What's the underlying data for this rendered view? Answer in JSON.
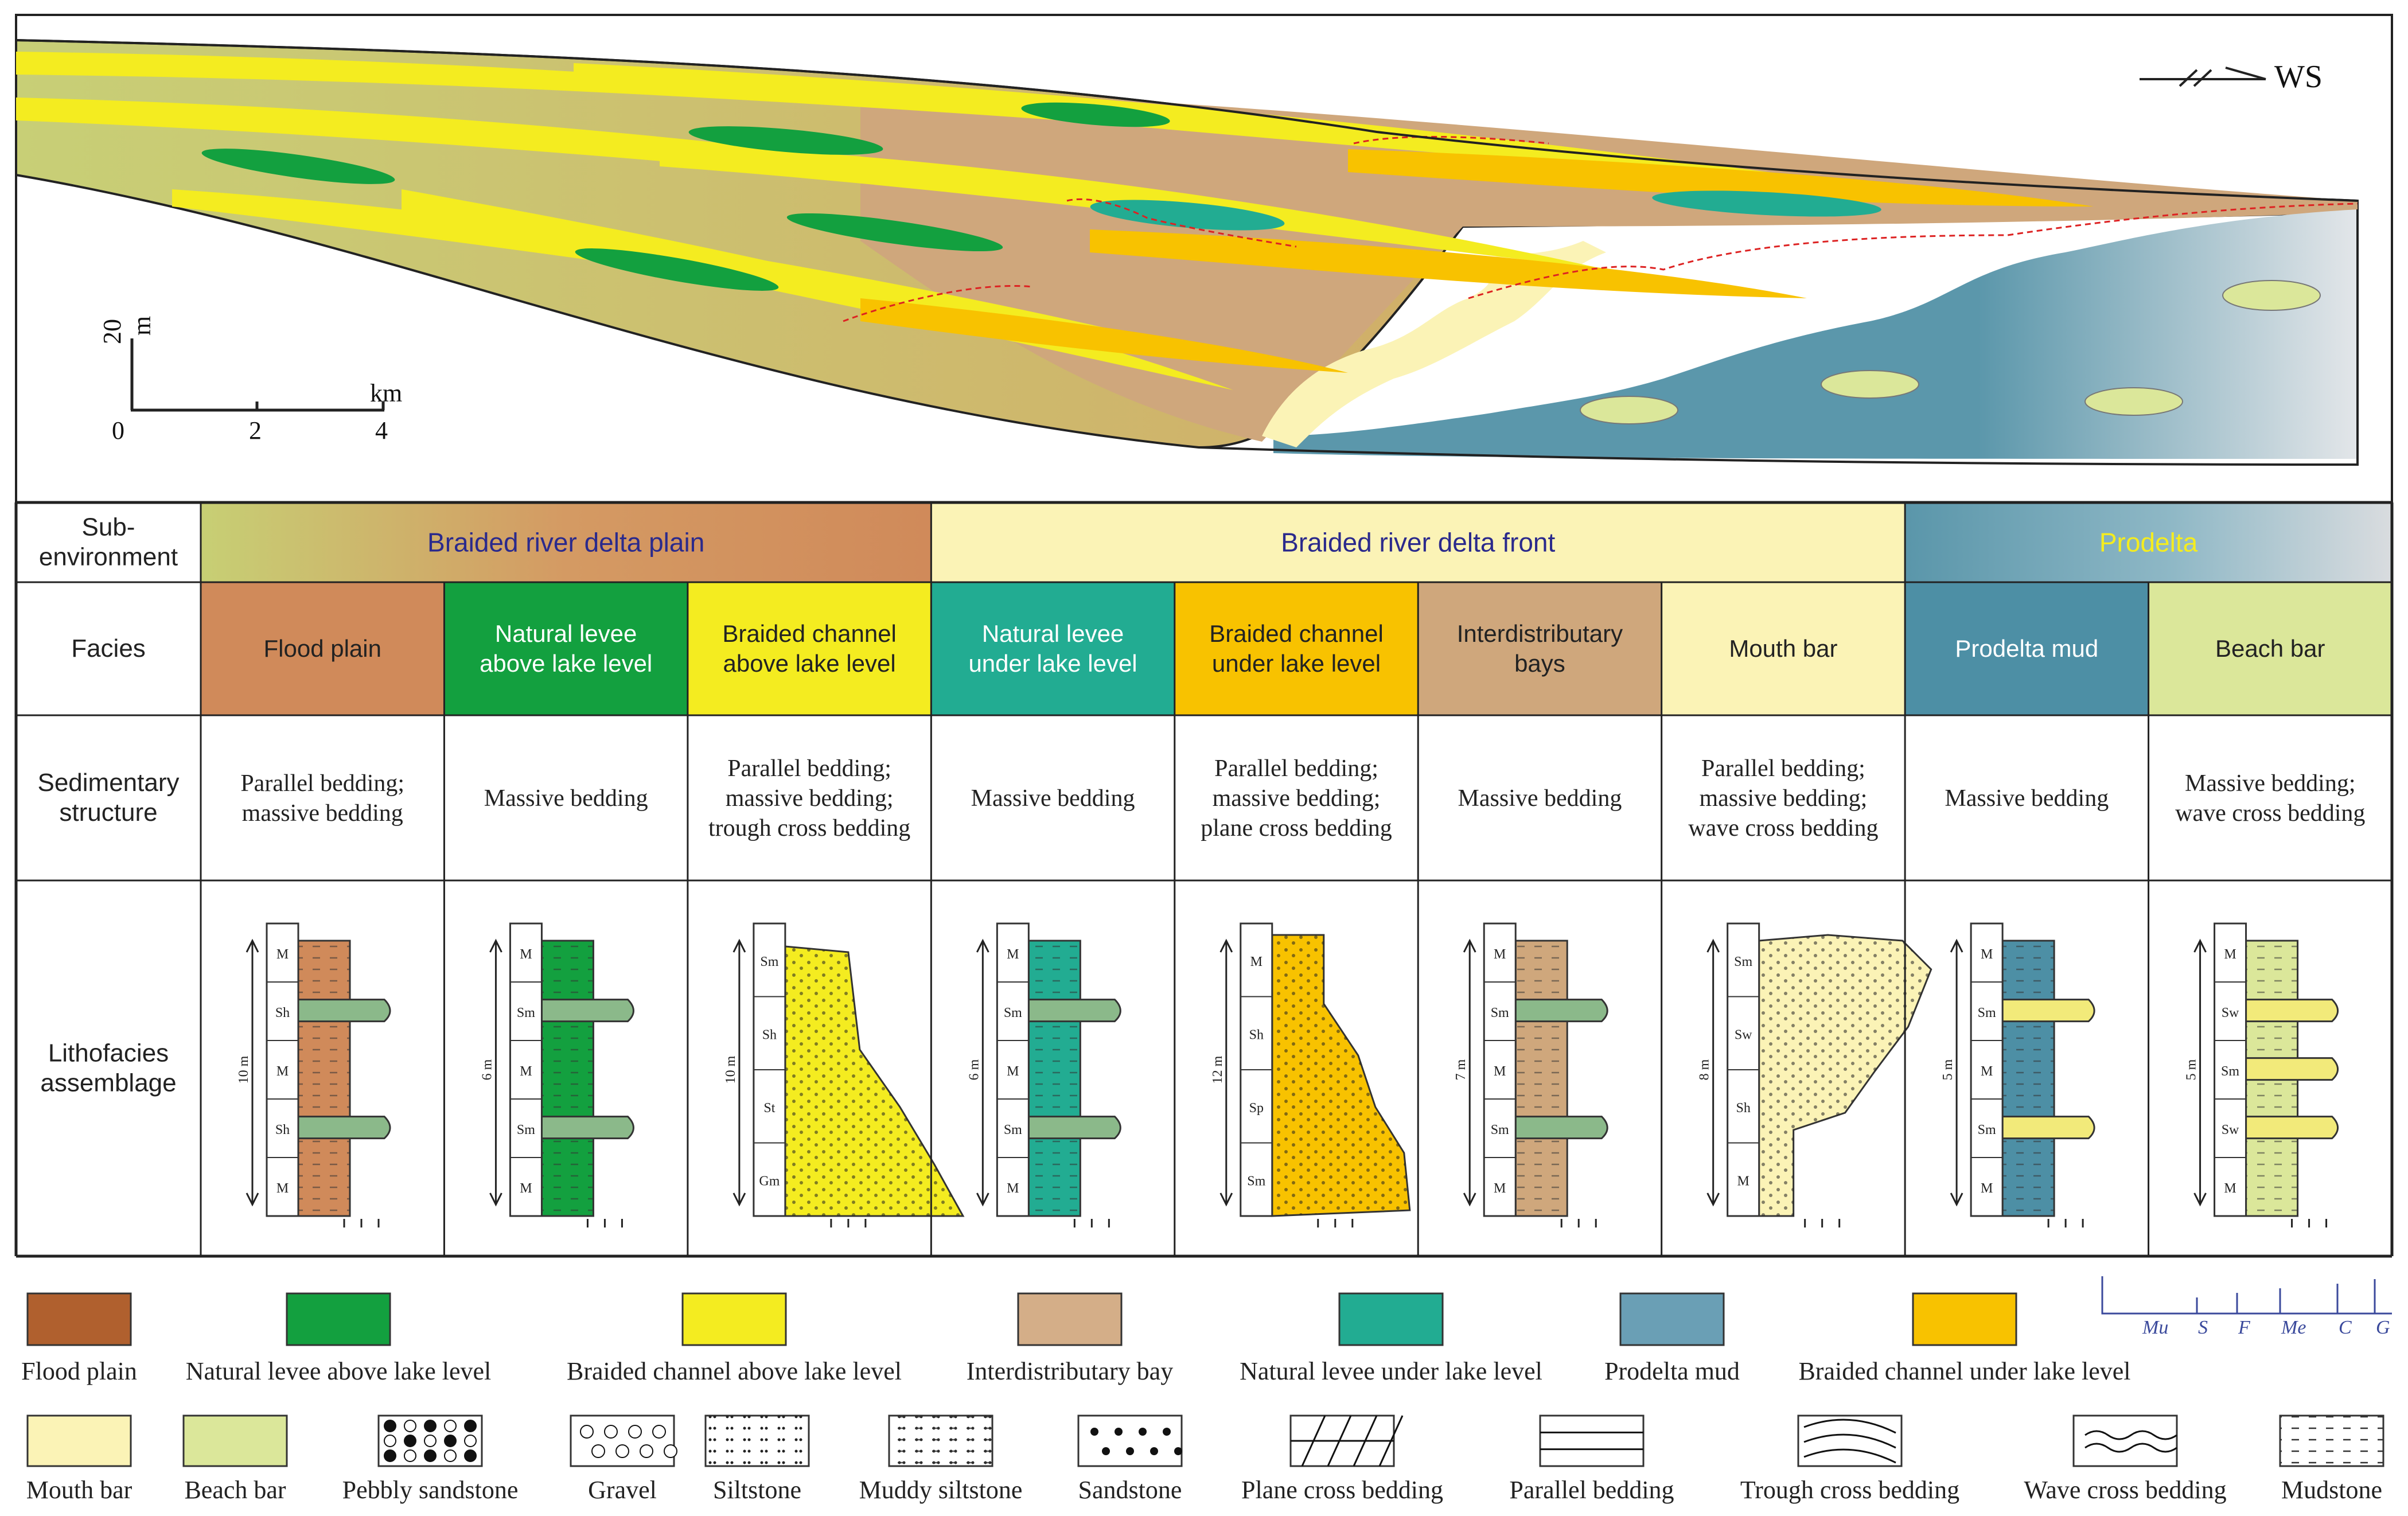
{
  "section": {
    "orientation_label": "WS",
    "scale": {
      "vertical_value": "20",
      "vertical_unit": "m",
      "horizontal_unit": "km",
      "ticks": [
        "0",
        "2",
        "4"
      ]
    }
  },
  "table": {
    "row_headers": [
      "Sub-environment",
      "Facies",
      "Sedimentary structure",
      "Lithofacies assemblage"
    ],
    "subenvironments": [
      {
        "label": "Braided river delta plain",
        "color": "#d9a06a"
      },
      {
        "label": "Braided river delta front",
        "color": "#fbf3b6"
      },
      {
        "label": "Prodelta",
        "color": "#5a96aa"
      }
    ],
    "facies": [
      {
        "label": "Flood plain",
        "color": "#d08a5a",
        "structure": "Parallel bedding; massive bedding",
        "thickness": "10 m",
        "units": [
          "M",
          "Sh",
          "M",
          "Sh",
          "M"
        ]
      },
      {
        "label": "Natural levee above lake level",
        "color": "#13a03f",
        "structure": "Massive bedding",
        "thickness": "6 m",
        "units": [
          "M",
          "Sm",
          "M",
          "Sm",
          "M"
        ]
      },
      {
        "label": "Braided channel above lake level",
        "color": "#f4ec20",
        "structure": "Parallel bedding; massive bedding; trough cross bedding",
        "thickness": "10 m",
        "units": [
          "Sm",
          "Sh",
          "St",
          "Gm"
        ]
      },
      {
        "label": "Natural levee under lake level",
        "color": "#22ac92",
        "structure": "Massive bedding",
        "thickness": "6 m",
        "units": [
          "M",
          "Sm",
          "M",
          "Sm",
          "M"
        ]
      },
      {
        "label": "Braided channel under lake level",
        "color": "#f8c200",
        "structure": "Parallel bedding; massive bedding; plane cross bedding",
        "thickness": "12 m",
        "units": [
          "M",
          "Sh",
          "Sp",
          "Sm"
        ]
      },
      {
        "label": "Interdistributary bays",
        "color": "#cfa77c",
        "structure": "Massive bedding",
        "thickness": "7 m",
        "units": [
          "M",
          "Sm",
          "M",
          "Sm",
          "M"
        ]
      },
      {
        "label": "Mouth bar",
        "color": "#fbf3b6",
        "structure": "Parallel bedding; massive bedding; wave cross bedding",
        "thickness": "8 m",
        "units": [
          "Sm",
          "Sw",
          "Sh",
          "M"
        ]
      },
      {
        "label": "Prodelta mud",
        "color": "#4d8fa5",
        "structure": "Massive bedding",
        "thickness": "5 m",
        "units": [
          "M",
          "Sm",
          "M",
          "Sm",
          "M"
        ]
      },
      {
        "label": "Beach bar",
        "color": "#dbe79a",
        "structure": "Massive bedding; wave cross bedding",
        "thickness": "5 m",
        "units": [
          "M",
          "Sw",
          "Sm",
          "Sw",
          "M"
        ]
      }
    ]
  },
  "legend": {
    "grain_scale": [
      "Mu",
      "S",
      "F",
      "Me",
      "C",
      "G"
    ],
    "colors": [
      {
        "label": "Flood plain",
        "color": "#b0602e"
      },
      {
        "label": "Natural levee above lake level",
        "color": "#13a03f"
      },
      {
        "label": "Braided channel above lake level",
        "color": "#f4ec20"
      },
      {
        "label": "Interdistributary bay",
        "color": "#d4ae88"
      },
      {
        "label": "Natural levee under lake level",
        "color": "#22ac92"
      },
      {
        "label": "Prodelta mud",
        "color": "#6a9fb5"
      },
      {
        "label": "Braided channel under lake level",
        "color": "#f8c200"
      }
    ],
    "patterns": [
      {
        "label": "Mouth bar",
        "color": "#fbf3b6"
      },
      {
        "label": "Beach bar",
        "color": "#dbe79a"
      },
      {
        "label": "Pebbly sandstone"
      },
      {
        "label": "Gravel"
      },
      {
        "label": "Siltstone"
      },
      {
        "label": "Muddy siltstone"
      },
      {
        "label": "Sandstone"
      },
      {
        "label": "Plane cross bedding"
      },
      {
        "label": "Parallel bedding"
      },
      {
        "label": "Trough cross bedding"
      },
      {
        "label": "Wave cross bedding"
      },
      {
        "label": "Mudstone"
      }
    ]
  }
}
